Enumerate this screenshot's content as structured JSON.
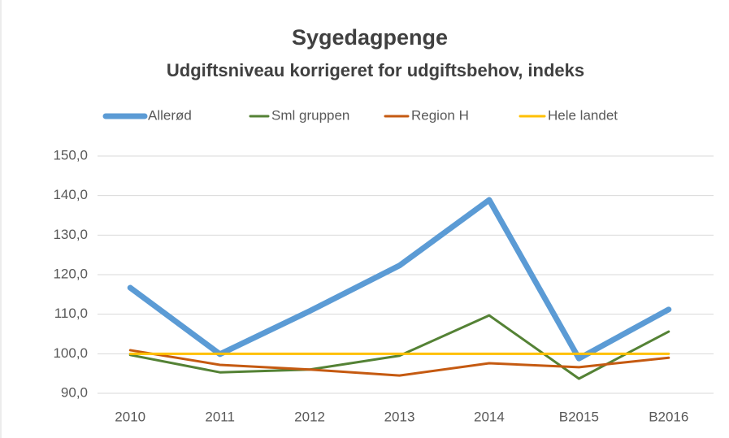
{
  "chart_data": {
    "type": "line",
    "title": "Sygedagpenge",
    "subtitle": "Udgiftsniveau korrigeret for udgiftsbehov, indeks",
    "categories": [
      "2010",
      "2011",
      "2012",
      "2013",
      "2014",
      "B2015",
      "B2016"
    ],
    "series": [
      {
        "name": "Allerød",
        "color": "#5b9bd5",
        "values": [
          116.7,
          99.9,
          110.8,
          122.3,
          138.9,
          98.8,
          111.2
        ]
      },
      {
        "name": "Sml gruppen",
        "color": "#548235",
        "values": [
          99.7,
          95.3,
          96.0,
          99.5,
          109.7,
          93.7,
          105.6
        ]
      },
      {
        "name": "Region H",
        "color": "#c55a11",
        "values": [
          100.9,
          97.2,
          96.0,
          94.5,
          97.6,
          96.6,
          99.0
        ]
      },
      {
        "name": "Hele landet",
        "color": "#ffc000",
        "values": [
          100,
          100,
          100,
          100,
          100,
          100,
          100
        ]
      }
    ],
    "ylim": [
      90,
      150
    ],
    "yticks": [
      {
        "value": 90,
        "label": "90,0"
      },
      {
        "value": 100,
        "label": "100,0"
      },
      {
        "value": 110,
        "label": "110,0"
      },
      {
        "value": 120,
        "label": "120,0"
      },
      {
        "value": 130,
        "label": "130,0"
      },
      {
        "value": 140,
        "label": "140,0"
      },
      {
        "value": 150,
        "label": "150,0"
      }
    ],
    "grid": true,
    "legend": "top"
  }
}
